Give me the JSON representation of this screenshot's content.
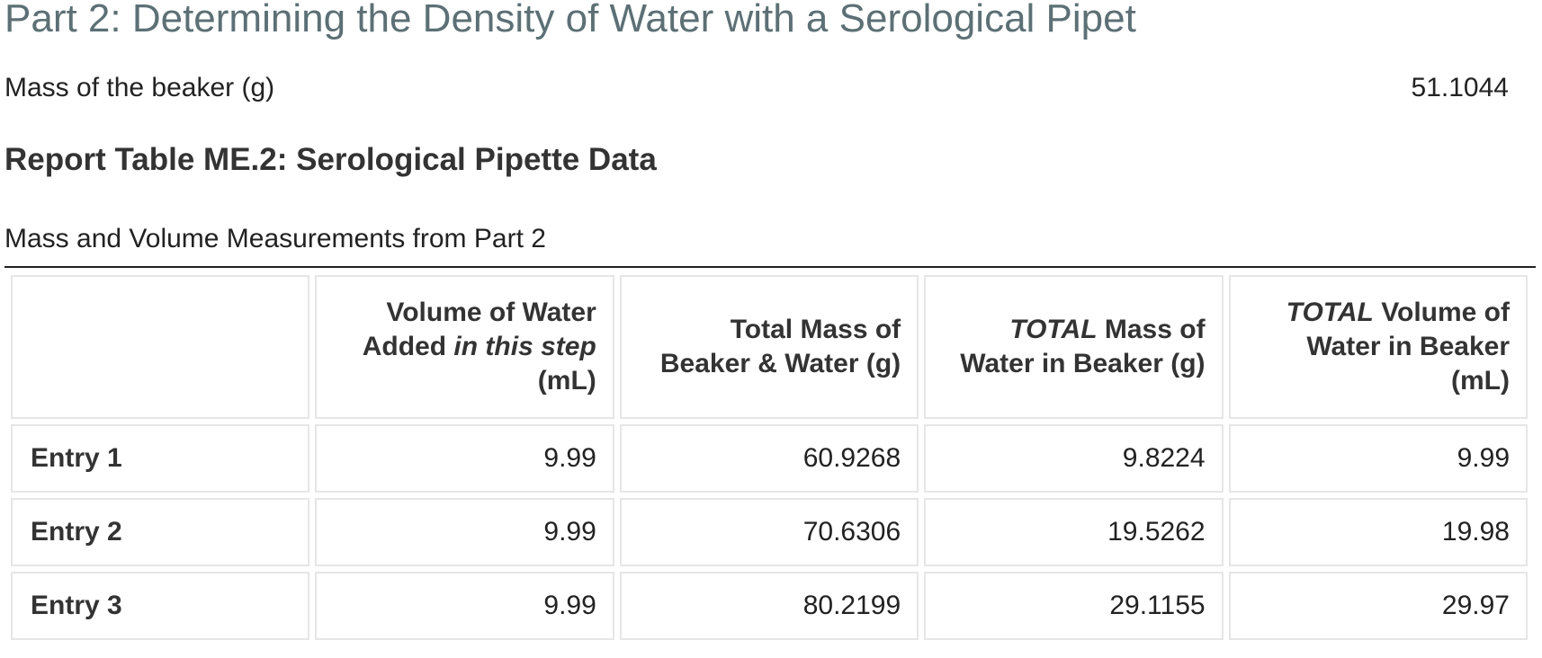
{
  "section": {
    "title": "Part 2: Determining the Density of Water with a Serological Pipet"
  },
  "beaker": {
    "label": "Mass of the beaker (g)",
    "value": "51.1044"
  },
  "table": {
    "title": "Report Table ME.2: Serological Pipette Data",
    "caption": "Mass and Volume Measurements from Part 2",
    "headers": {
      "col1_a": "Volume of Water Added ",
      "col1_em": "in this step",
      "col1_b": " (mL)",
      "col2": "Total Mass of Beaker & Water (g)",
      "col3_em": "TOTAL",
      "col3_b": " Mass of Water in Beaker (g)",
      "col4_em": "TOTAL",
      "col4_b": " Volume of Water in Beaker (mL)"
    },
    "rows": [
      {
        "label": "Entry 1",
        "cells": [
          "9.99",
          "60.9268",
          "9.8224",
          "9.99"
        ]
      },
      {
        "label": "Entry 2",
        "cells": [
          "9.99",
          "70.6306",
          "19.5262",
          "19.98"
        ]
      },
      {
        "label": "Entry 3",
        "cells": [
          "9.99",
          "80.2199",
          "29.1155",
          "29.97"
        ]
      }
    ]
  }
}
